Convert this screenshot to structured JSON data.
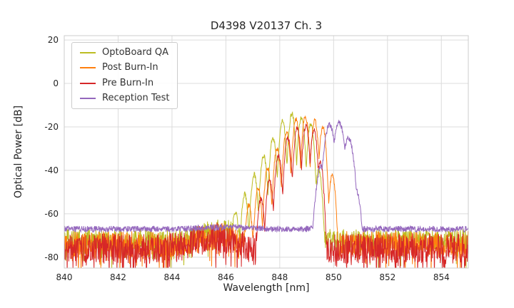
{
  "chart_data": {
    "type": "line",
    "title": "D4398 V20137 Ch. 3",
    "xlabel": "Wavelength [nm]",
    "ylabel": "Optical Power [dB]",
    "xlim": [
      840,
      855
    ],
    "ylim": [
      -85,
      22
    ],
    "xticks": [
      840,
      842,
      844,
      846,
      848,
      850,
      852,
      854
    ],
    "yticks": [
      20,
      0,
      -20,
      -40,
      -60,
      -80
    ],
    "grid": true,
    "legend_position": "upper left",
    "series": [
      {
        "name": "OptoBoard QA",
        "color": "#bcbd22",
        "mode_sigma": 0.037,
        "noise_floor_db": -72,
        "noise_amplitude_db": 5,
        "noise_spike_db": 10,
        "spike_prob": 0.12,
        "floor_bump": {
          "center": 845.8,
          "amp": 5,
          "width": 0.8
        },
        "modes": [
          [
            846.35,
            -59
          ],
          [
            846.7,
            -51
          ],
          [
            847.05,
            -42
          ],
          [
            847.4,
            -33
          ],
          [
            847.75,
            -25
          ],
          [
            848.1,
            -17
          ],
          [
            848.45,
            -14
          ],
          [
            848.8,
            -15.5
          ],
          [
            849.15,
            -18.5
          ],
          [
            849.45,
            -40
          ]
        ]
      },
      {
        "name": "Post Burn-In",
        "color": "#ff7f0e",
        "mode_sigma": 0.037,
        "noise_floor_db": -74,
        "noise_amplitude_db": 6,
        "noise_spike_db": 10,
        "spike_prob": 0.12,
        "floor_bump": {
          "center": 845.8,
          "amp": 4,
          "width": 0.9
        },
        "modes": [
          [
            846.85,
            -56
          ],
          [
            847.2,
            -48
          ],
          [
            847.55,
            -39
          ],
          [
            847.9,
            -30
          ],
          [
            848.25,
            -22
          ],
          [
            848.6,
            -16.5
          ],
          [
            848.95,
            -15
          ],
          [
            849.3,
            -17
          ],
          [
            849.6,
            -20
          ],
          [
            849.95,
            -42
          ]
        ]
      },
      {
        "name": "Pre Burn-In",
        "color": "#d62728",
        "mode_sigma": 0.037,
        "noise_floor_db": -76,
        "noise_amplitude_db": 7,
        "noise_spike_db": 12,
        "spike_prob": 0.14,
        "floor_bump": {
          "center": 845.6,
          "amp": 5,
          "width": 1.0
        },
        "modes": [
          [
            847.3,
            -53
          ],
          [
            847.62,
            -44
          ],
          [
            847.95,
            -33
          ],
          [
            848.3,
            -25
          ],
          [
            848.65,
            -20.5
          ],
          [
            848.97,
            -19.5
          ],
          [
            849.27,
            -21.5
          ],
          [
            849.5,
            -36
          ]
        ]
      },
      {
        "name": "Reception Test",
        "color": "#9467bd",
        "mode_sigma": 0.06,
        "noise_floor_db": -67,
        "noise_amplitude_db": 1.4,
        "noise_spike_db": 0,
        "spike_prob": 0,
        "floor_bump": {
          "center": 846.0,
          "amp": 0.8,
          "width": 1.2
        },
        "modes": [
          [
            849.55,
            -38
          ],
          [
            849.85,
            -19
          ],
          [
            850.2,
            -18
          ],
          [
            850.55,
            -25
          ],
          [
            850.8,
            -48
          ]
        ]
      }
    ]
  }
}
